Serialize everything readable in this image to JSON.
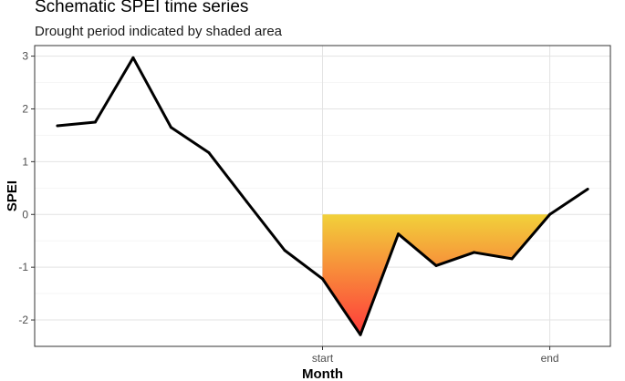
{
  "chart_data": {
    "type": "line",
    "title": "Schematic SPEI time series",
    "subtitle": "Drought period indicated by shaded area",
    "xlabel": "Month",
    "ylabel": "SPEI",
    "x": [
      1,
      2,
      3,
      4,
      5,
      6,
      7,
      8,
      9,
      10,
      11,
      12,
      13,
      14,
      15
    ],
    "values": [
      1.68,
      1.75,
      2.97,
      1.65,
      1.17,
      0.24,
      -0.68,
      -1.22,
      -2.28,
      -0.37,
      -0.97,
      -0.72,
      -0.84,
      0.0,
      0.48
    ],
    "xlim": [
      0.4,
      15.6
    ],
    "ylim": [
      -2.5,
      3.2
    ],
    "y_ticks": [
      -2,
      -1,
      0,
      1,
      2,
      3
    ],
    "x_ticks": [
      {
        "x": 8,
        "label": "start"
      },
      {
        "x": 14,
        "label": "end"
      }
    ],
    "drought_period": {
      "start": 8,
      "end": 14
    },
    "line_color": "#000000",
    "fill_gradient": {
      "top": "#f1d13a",
      "bottom": "#ff3b3b"
    },
    "grid": true,
    "legend": "none"
  }
}
